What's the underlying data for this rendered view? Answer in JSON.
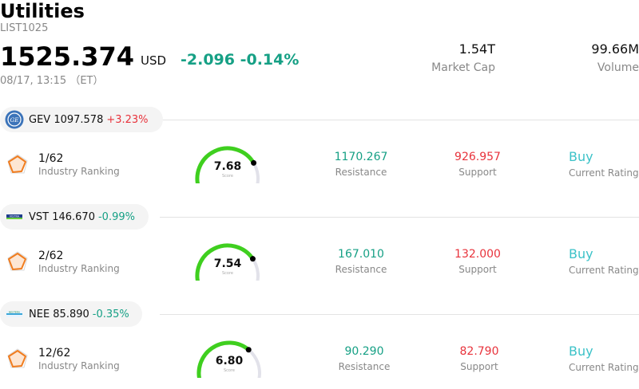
{
  "header": {
    "title": "Utilities",
    "code": "LIST1025",
    "price": "1525.374",
    "currency": "USD",
    "change": "-2.096",
    "change_pct": "-0.14%",
    "time": "08/17, 13:15 （ET）",
    "market_cap_value": "1.54T",
    "market_cap_label": "Market Cap",
    "volume_value": "99.66M",
    "volume_label": "Volume"
  },
  "stocks": [
    {
      "ticker_line": "GEV 1097.578",
      "change_pct": "+3.23%",
      "direction": "up",
      "logo_icon": "ge-logo-icon",
      "rank": "1/62",
      "rank_label": "Industry Ranking",
      "score": "7.68",
      "score_value": 7.68,
      "score_label": "Score",
      "resistance": "1170.267",
      "resistance_label": "Resistance",
      "support": "926.957",
      "support_label": "Support",
      "rating": "Buy",
      "rating_label": "Current Rating"
    },
    {
      "ticker_line": "VST 146.670",
      "change_pct": "-0.99%",
      "direction": "down",
      "logo_icon": "vistra-logo-icon",
      "rank": "2/62",
      "rank_label": "Industry Ranking",
      "score": "7.54",
      "score_value": 7.54,
      "score_label": "Score",
      "resistance": "167.010",
      "resistance_label": "Resistance",
      "support": "132.000",
      "support_label": "Support",
      "rating": "Buy",
      "rating_label": "Current Rating"
    },
    {
      "ticker_line": "NEE 85.890",
      "change_pct": "-0.35%",
      "direction": "down",
      "logo_icon": "nextera-logo-icon",
      "rank": "12/62",
      "rank_label": "Industry Ranking",
      "score": "6.80",
      "score_value": 6.8,
      "score_label": "Score",
      "resistance": "90.290",
      "resistance_label": "Resistance",
      "support": "82.790",
      "support_label": "Support",
      "rating": "Buy",
      "rating_label": "Current Rating"
    }
  ],
  "colors": {
    "up": "#e8333c",
    "down": "#16a085",
    "gauge_fill": "#3fcf1f",
    "gauge_track": "#e2e2ea",
    "rating": "#3cc2c8",
    "rank_icon": "#f07c1e"
  }
}
